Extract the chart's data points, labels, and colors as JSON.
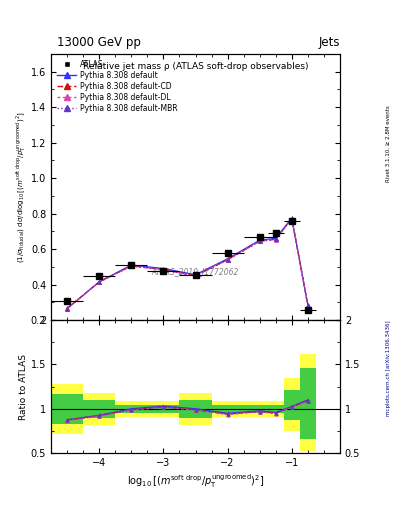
{
  "title_top": "13000 GeV pp",
  "title_right": "Jets",
  "plot_title": "Relative jet mass ρ (ATLAS soft-drop observables)",
  "watermark": "ATLAS_2019_I1772062",
  "right_label_top": "Rivet 3.1.10, ≥ 2.8M events",
  "right_label_bot": "mcplots.cern.ch [arXiv:1306.3436]",
  "ylabel_main": "(1/σₜₑₛᵤ℀) dσ/d log₁₀[(mˢᵒᶠᵗ ᵈʳᵒᵖ/pᵀᵘⁿᵏʳᵒᵒᵐᵉᵈ)^2]",
  "ylabel_ratio": "Ratio to ATLAS",
  "xlim": [
    -4.75,
    -0.25
  ],
  "ylim_main": [
    0.2,
    1.7
  ],
  "ylim_ratio": [
    0.5,
    2.0
  ],
  "atlas_x": [
    -4.5,
    -4.0,
    -3.5,
    -3.0,
    -2.5,
    -2.0,
    -1.5,
    -1.25,
    -1.0,
    -0.75
  ],
  "atlas_xerr": [
    0.25,
    0.25,
    0.25,
    0.25,
    0.25,
    0.25,
    0.25,
    0.125,
    0.125,
    0.125
  ],
  "atlas_y": [
    0.305,
    0.45,
    0.51,
    0.475,
    0.455,
    0.575,
    0.665,
    0.69,
    0.755,
    0.255
  ],
  "pythia_default_y": [
    0.265,
    0.415,
    0.51,
    0.49,
    0.455,
    0.545,
    0.65,
    0.66,
    0.775,
    0.285
  ],
  "pythia_cd_y": [
    0.265,
    0.415,
    0.505,
    0.485,
    0.45,
    0.54,
    0.645,
    0.655,
    0.772,
    0.283
  ],
  "pythia_dl_y": [
    0.263,
    0.413,
    0.503,
    0.483,
    0.448,
    0.538,
    0.643,
    0.653,
    0.77,
    0.281
  ],
  "pythia_mbr_y": [
    0.264,
    0.414,
    0.504,
    0.484,
    0.449,
    0.539,
    0.644,
    0.654,
    0.771,
    0.282
  ],
  "ratio_default_y": [
    0.875,
    0.925,
    1.0,
    1.03,
    1.0,
    0.948,
    0.977,
    0.957,
    1.026,
    1.1
  ],
  "ratio_cd_y": [
    0.875,
    0.925,
    0.99,
    1.02,
    0.99,
    0.94,
    0.97,
    0.95,
    1.022,
    1.09
  ],
  "ratio_dl_y": [
    0.865,
    0.918,
    0.985,
    1.015,
    0.985,
    0.935,
    0.965,
    0.946,
    1.018,
    1.085
  ],
  "ratio_mbr_y": [
    0.87,
    0.921,
    0.988,
    1.018,
    0.988,
    0.938,
    0.968,
    0.948,
    1.02,
    1.088
  ],
  "yellow_ratio_lo": [
    0.72,
    0.82,
    0.91,
    0.91,
    0.82,
    0.91,
    0.91,
    0.91,
    0.75,
    0.52
  ],
  "yellow_ratio_hi": [
    1.28,
    1.18,
    1.09,
    1.09,
    1.18,
    1.09,
    1.09,
    1.09,
    1.35,
    1.62
  ],
  "green_ratio_lo": [
    0.83,
    0.9,
    0.955,
    0.955,
    0.9,
    0.955,
    0.955,
    0.955,
    0.875,
    0.66
  ],
  "green_ratio_hi": [
    1.17,
    1.1,
    1.045,
    1.045,
    1.1,
    1.045,
    1.045,
    1.045,
    1.21,
    1.46
  ],
  "color_default": "#3333ff",
  "color_cd": "#cc1111",
  "color_dl": "#dd44aa",
  "color_mbr": "#6633cc",
  "color_yellow": "#ffff44",
  "color_green": "#44cc44",
  "atlas_color": "black",
  "legend_labels": [
    "ATLAS",
    "Pythia 8.308 default",
    "Pythia 8.308 default-CD",
    "Pythia 8.308 default-DL",
    "Pythia 8.308 default-MBR"
  ]
}
